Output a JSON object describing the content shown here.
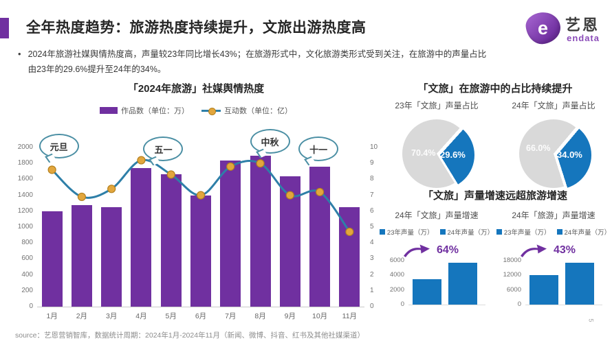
{
  "slide": {
    "title": "全年热度趋势：旅游热度持续提升，文旅出游热度高",
    "bullet": "2024年旅游社媒舆情热度高，声量较23年同比增长43%；在旅游形式中，文化旅游类形式受到关注，在旅游中的声量占比由23年的29.6%提升至24年的34%。",
    "logo": {
      "glyph": "e",
      "brand_cn": "艺恩",
      "brand_en": "endata"
    },
    "source": "source：艺恩营销智库，数据统计周期：2024年1月-2024年11月（新闻、微博、抖音、红书及其他社媒渠道）",
    "page_number": "5"
  },
  "colors": {
    "accent_purple": "#7030a0",
    "bar_purple": "#7030a0",
    "line_teal": "#2e7fa8",
    "marker_amber": "#e2a63d",
    "blue": "#1576bd",
    "pie_gray": "#d9d9d9",
    "growth_purple": "#7030a0"
  },
  "chart_data": [
    {
      "type": "bar+line",
      "title": "「2024年旅游」社媒舆情热度",
      "categories": [
        "1月",
        "2月",
        "3月",
        "4月",
        "5月",
        "6月",
        "7月",
        "8月",
        "9月",
        "10月",
        "11月"
      ],
      "series": [
        {
          "name": "作品数（单位：万）",
          "type": "bar",
          "axis": "left",
          "color": "#7030a0",
          "values": [
            1200,
            1280,
            1250,
            1740,
            1660,
            1400,
            1840,
            1900,
            1640,
            1760,
            1250
          ]
        },
        {
          "name": "互动数（单位：亿）",
          "type": "line",
          "axis": "right",
          "color": "#2e7fa8",
          "marker_color": "#e2a63d",
          "values": [
            8.6,
            6.9,
            7.4,
            9.2,
            8.3,
            7.0,
            8.8,
            9.0,
            7.0,
            7.2,
            4.7
          ]
        }
      ],
      "left_axis": {
        "min": 0,
        "max": 2000,
        "step": 200
      },
      "right_axis": {
        "min": 0,
        "max": 10,
        "step": 1
      },
      "annotations": [
        {
          "label": "元旦",
          "index": 0
        },
        {
          "label": "五一",
          "index": 3
        },
        {
          "label": "中秋",
          "index": 7
        },
        {
          "label": "十一",
          "index": 9
        }
      ]
    },
    {
      "type": "pie",
      "title": "「文旅」在旅游中的占比持续提升",
      "pies": [
        {
          "subtitle": "23年「文旅」声量占比",
          "slices": [
            {
              "label": "70.4%",
              "value": 70.4,
              "color": "#d9d9d9"
            },
            {
              "label": "29.6%",
              "value": 29.6,
              "color": "#1576bd"
            }
          ]
        },
        {
          "subtitle": "24年「文旅」声量占比",
          "slices": [
            {
              "label": "66.0%",
              "value": 66.0,
              "color": "#d9d9d9"
            },
            {
              "label": "34.0%",
              "value": 34.0,
              "color": "#1576bd"
            }
          ]
        }
      ]
    },
    {
      "type": "bar",
      "title": "「文旅」声量增速远超旅游增速",
      "charts": [
        {
          "subtitle": "24年「文旅」声量增速",
          "legend": [
            "23年声量（万）",
            "24年声量（万）"
          ],
          "growth_label": "64%",
          "values": [
            3500,
            5700
          ],
          "yticks": [
            0,
            2000,
            4000,
            6000
          ],
          "ymax": 6000
        },
        {
          "subtitle": "24年「旅游」声量增速",
          "legend": [
            "23年声量（万）",
            "24年声量（万）"
          ],
          "growth_label": "43%",
          "values": [
            12000,
            17200
          ],
          "yticks": [
            0,
            6000,
            12000,
            18000
          ],
          "ymax": 18000
        }
      ]
    }
  ]
}
